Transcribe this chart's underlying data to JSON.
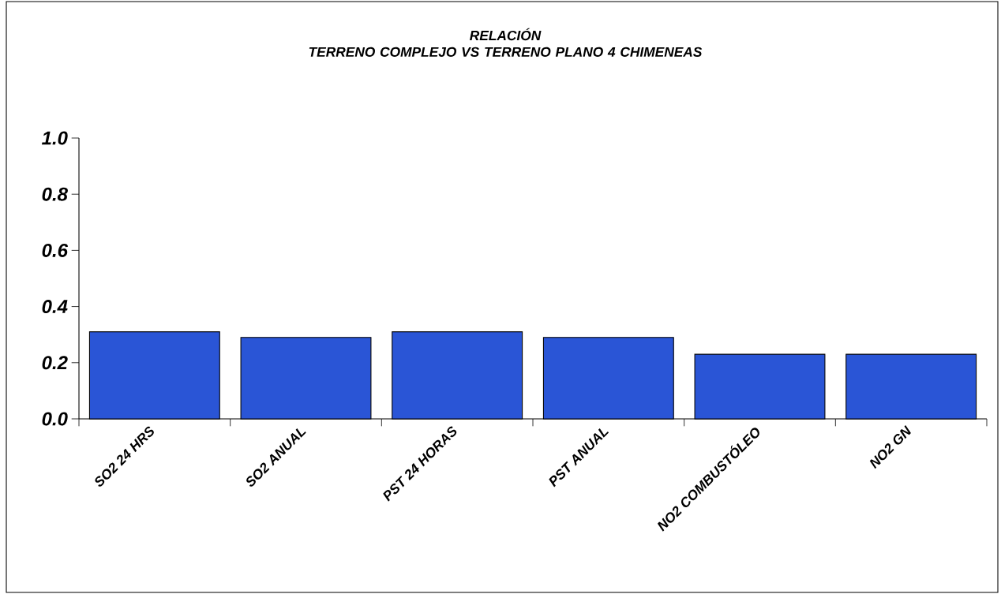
{
  "chart_data": {
    "type": "bar",
    "title": "RELACIÓN",
    "subtitle": "TERRENO COMPLEJO VS TERRENO PLANO 4 CHIMENEAS",
    "categories": [
      "SO2 24 HRS",
      "SO2 ANUAL",
      "PST 24 HORAS",
      "PST ANUAL",
      "NO2 COMBUSTÓLEO",
      "NO2 GN"
    ],
    "values": [
      0.31,
      0.29,
      0.31,
      0.29,
      0.23,
      0.23
    ],
    "color": "#2a55d6",
    "ylim": [
      0,
      1
    ],
    "yticks": [
      {
        "value": 0,
        "label": "0.0"
      },
      {
        "value": 0.2,
        "label": "0.2"
      },
      {
        "value": 0.4,
        "label": "0.4"
      },
      {
        "value": 0.6,
        "label": "0.6"
      },
      {
        "value": 0.8,
        "label": "0.8"
      },
      {
        "value": 1,
        "label": "1.0"
      }
    ],
    "grid": false
  }
}
